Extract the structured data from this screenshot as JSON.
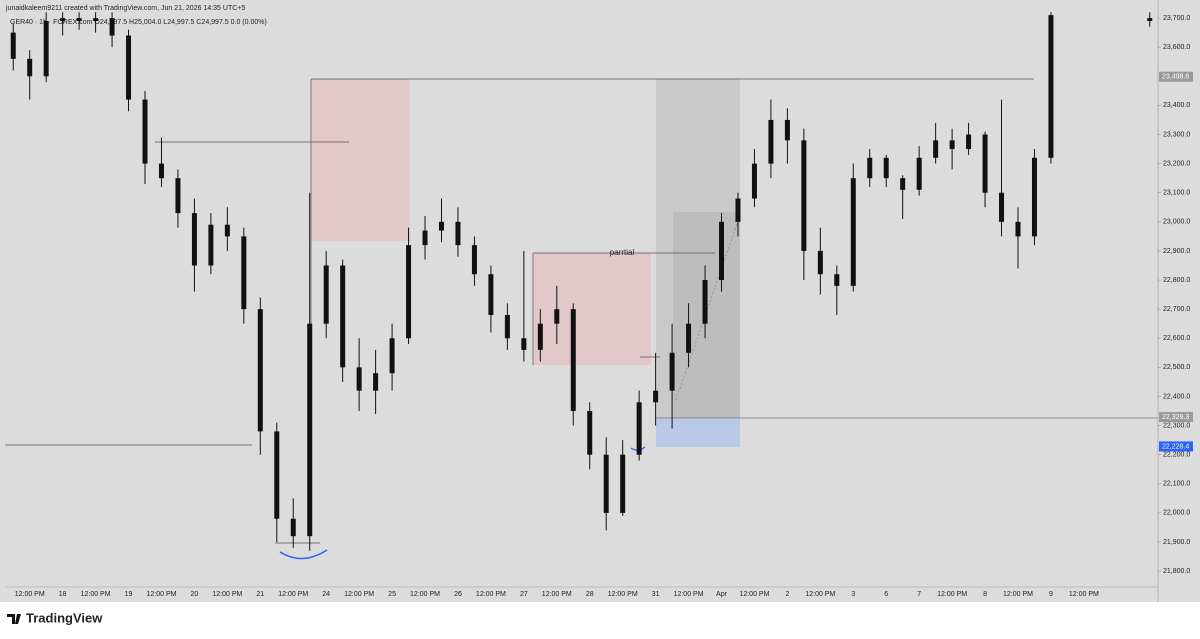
{
  "chart_data": {
    "type": "candlestick",
    "title": "junaidkaleem9211 created with TradingView.com, Jun 21, 2026 14:35 UTC+5",
    "subtitle": "GER40 · 1h · FOREX.com  O24,997.5 H25,004.0 L24,997.5 C24,997.5 0.0 (0.00%)",
    "annotation": "parrtial",
    "branding": "TradingView",
    "color": "#111111",
    "categories": [
      null,
      "12:00 PM",
      null,
      "18",
      null,
      "12:00 PM",
      null,
      "19",
      null,
      "12:00 PM",
      null,
      "20",
      null,
      "12:00 PM",
      null,
      "21",
      null,
      "12:00 PM",
      null,
      "24",
      null,
      "12:00 PM",
      null,
      "25",
      null,
      "12:00 PM",
      null,
      "26",
      null,
      "12:00 PM",
      null,
      "27",
      null,
      "12:00 PM",
      null,
      "28",
      null,
      "12:00 PM",
      null,
      "31",
      null,
      "12:00 PM",
      null,
      "Apr",
      null,
      "12:00 PM",
      null,
      "2",
      null,
      "12:00 PM",
      null,
      "3",
      null,
      "6",
      null,
      "7",
      null,
      "12:00 PM",
      null,
      "8",
      null,
      "12:00 PM",
      null,
      "9",
      null,
      "12:00 PM",
      null,
      null,
      null,
      null
    ],
    "open": [
      23650,
      23560,
      23500,
      23690,
      23700,
      23690,
      23700,
      23640,
      23420,
      23200,
      23150,
      23030,
      22850,
      22990,
      22950,
      22700,
      22280,
      21980,
      21920,
      22650,
      22850,
      22500,
      22420,
      22480,
      22600,
      22920,
      22970,
      23000,
      22920,
      22820,
      22680,
      22600,
      22560,
      22650,
      22700,
      22350,
      22200,
      22000,
      22200,
      22380,
      22420,
      22550,
      22650,
      22800,
      23000,
      23080,
      23200,
      23350,
      23280,
      22900,
      22820,
      22780,
      23150,
      23220,
      23150,
      23110,
      23220,
      23280,
      23250,
      23300,
      23100,
      23000,
      22950,
      23220,
      null,
      null,
      null,
      null,
      null,
      23700
    ],
    "high": [
      23680,
      23590,
      23720,
      23720,
      23720,
      23720,
      23720,
      23660,
      23450,
      23290,
      23180,
      23080,
      23030,
      23050,
      22980,
      22740,
      22310,
      22050,
      23100,
      22900,
      22870,
      22600,
      22560,
      22650,
      22980,
      23020,
      23080,
      23050,
      22950,
      22850,
      22720,
      22900,
      22700,
      22780,
      22720,
      22380,
      22260,
      22250,
      22420,
      22550,
      22650,
      22720,
      22850,
      23030,
      23100,
      23250,
      23420,
      23390,
      23320,
      22980,
      22850,
      23200,
      23250,
      23230,
      23160,
      23260,
      23340,
      23320,
      23340,
      23310,
      23420,
      23050,
      23250,
      23720,
      null,
      null,
      null,
      null,
      null,
      23720
    ],
    "low": [
      23520,
      23420,
      23480,
      23640,
      23660,
      23650,
      23600,
      23380,
      23130,
      23120,
      22980,
      22760,
      22820,
      22900,
      22650,
      22200,
      21900,
      21880,
      21870,
      22600,
      22450,
      22350,
      22340,
      22420,
      22580,
      22870,
      22930,
      22880,
      22780,
      22620,
      22560,
      22520,
      22520,
      22580,
      22300,
      22150,
      21940,
      21990,
      22180,
      22300,
      22290,
      22500,
      22600,
      22760,
      22950,
      23050,
      23150,
      23200,
      22800,
      22750,
      22680,
      22760,
      23120,
      23120,
      23010,
      23090,
      23200,
      23180,
      23230,
      23050,
      22950,
      22840,
      22920,
      23200,
      null,
      null,
      null,
      null,
      null,
      23670
    ],
    "close": [
      23560,
      23500,
      23690,
      23700,
      23690,
      23700,
      23640,
      23420,
      23200,
      23150,
      23030,
      22850,
      22990,
      22950,
      22700,
      22280,
      21980,
      21920,
      22650,
      22850,
      22500,
      22420,
      22480,
      22600,
      22920,
      22970,
      23000,
      22920,
      22820,
      22680,
      22600,
      22560,
      22650,
      22700,
      22350,
      22200,
      22000,
      22200,
      22380,
      22420,
      22550,
      22650,
      22800,
      23000,
      23080,
      23200,
      23350,
      23280,
      22900,
      22820,
      22780,
      23150,
      23220,
      23150,
      23110,
      23220,
      23280,
      23250,
      23300,
      23100,
      23000,
      22950,
      23220,
      23710,
      null,
      null,
      null,
      null,
      null,
      23690
    ],
    "ylim": [
      21742,
      23714
    ],
    "yticks": [
      {
        "value": 21800,
        "label": "21,800.0"
      },
      {
        "value": 21900,
        "label": "21,900.0"
      },
      {
        "value": 22000,
        "label": "22,000.0"
      },
      {
        "value": 22100,
        "label": "22,100.0"
      },
      {
        "value": 22200,
        "label": "22,200.0"
      },
      {
        "value": 22300,
        "label": "22,300.0"
      },
      {
        "value": 22400,
        "label": "22,400.0"
      },
      {
        "value": 22500,
        "label": "22,500.0"
      },
      {
        "value": 22600,
        "label": "22,600.0"
      },
      {
        "value": 22700,
        "label": "22,700.0"
      },
      {
        "value": 22800,
        "label": "22,800.0"
      },
      {
        "value": 22900,
        "label": "22,900.0"
      },
      {
        "value": 23000,
        "label": "23,000.0"
      },
      {
        "value": 23100,
        "label": "23,100.0"
      },
      {
        "value": 23200,
        "label": "23,200.0"
      },
      {
        "value": 23300,
        "label": "23,300.0"
      },
      {
        "value": 23400,
        "label": "23,400.0"
      },
      {
        "value": 23500,
        "label": "23,500.0"
      },
      {
        "value": 23600,
        "label": "23,600.0"
      },
      {
        "value": 23700,
        "label": "23,700.0"
      }
    ],
    "price_labels": [
      {
        "value": 23498.6,
        "label": "23,498.6",
        "color": "#9a9a9a"
      },
      {
        "value": 22329.3,
        "label": "22,329.3",
        "color": "#9a9a9a"
      },
      {
        "value": 22228.4,
        "label": "22,228.4",
        "color": "#2962ff"
      }
    ]
  }
}
